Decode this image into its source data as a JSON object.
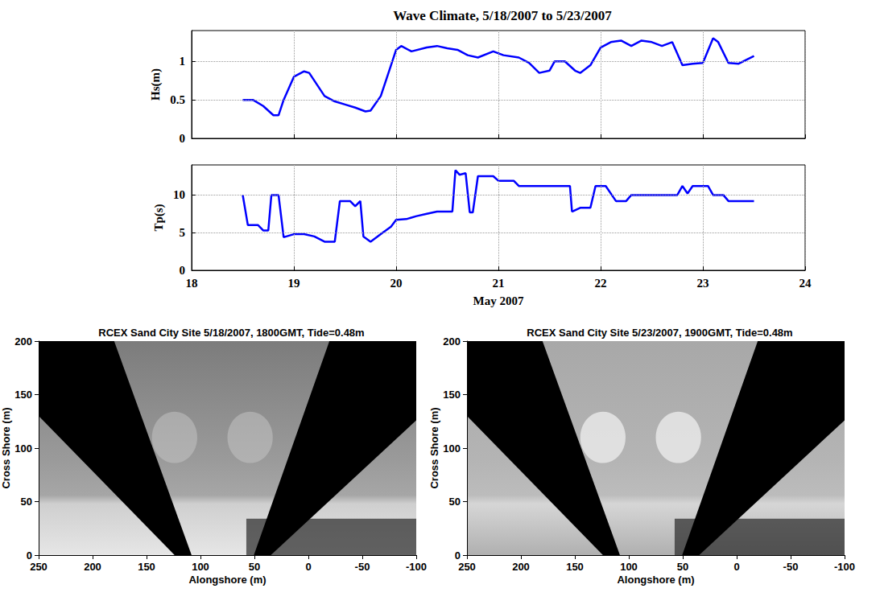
{
  "chart_data": [
    {
      "type": "line",
      "title": "Wave Climate, 5/18/2007 to 5/23/2007",
      "y_label": "Hs(m)",
      "x": [
        18.5,
        18.6,
        18.7,
        18.8,
        18.85,
        18.9,
        19.0,
        19.1,
        19.15,
        19.3,
        19.4,
        19.5,
        19.6,
        19.7,
        19.75,
        19.85,
        19.95,
        20.0,
        20.05,
        20.15,
        20.3,
        20.4,
        20.5,
        20.6,
        20.7,
        20.8,
        20.95,
        21.05,
        21.2,
        21.3,
        21.4,
        21.5,
        21.55,
        21.65,
        21.75,
        21.8,
        21.9,
        22.0,
        22.1,
        22.2,
        22.3,
        22.4,
        22.5,
        22.6,
        22.7,
        22.8,
        22.9,
        23.0,
        23.1,
        23.15,
        23.25,
        23.35,
        23.5
      ],
      "values": [
        0.5,
        0.5,
        0.42,
        0.3,
        0.3,
        0.5,
        0.8,
        0.87,
        0.85,
        0.55,
        0.48,
        0.44,
        0.4,
        0.35,
        0.36,
        0.55,
        0.95,
        1.15,
        1.2,
        1.13,
        1.18,
        1.2,
        1.17,
        1.15,
        1.08,
        1.05,
        1.13,
        1.08,
        1.05,
        0.98,
        0.85,
        0.88,
        1.0,
        1.0,
        0.88,
        0.85,
        0.95,
        1.18,
        1.25,
        1.27,
        1.2,
        1.27,
        1.25,
        1.2,
        1.25,
        0.95,
        0.97,
        0.98,
        1.3,
        1.25,
        0.98,
        0.97,
        1.07
      ],
      "color": "#0000ff",
      "xlim": [
        18,
        24
      ],
      "xticks": [
        18,
        19,
        20,
        21,
        22,
        23,
        24
      ],
      "ylim": [
        0,
        1.4
      ],
      "yticks": [
        0,
        0.5,
        1
      ],
      "grid": true,
      "tick_labels": "y"
    },
    {
      "type": "line",
      "x_label": "May 2007",
      "y_label": "Tp(s)",
      "x": [
        18.5,
        18.55,
        18.65,
        18.7,
        18.75,
        18.78,
        18.85,
        18.9,
        19.0,
        19.1,
        19.2,
        19.3,
        19.4,
        19.45,
        19.55,
        19.6,
        19.65,
        19.68,
        19.75,
        19.85,
        19.95,
        20.0,
        20.1,
        20.2,
        20.3,
        20.4,
        20.55,
        20.58,
        20.62,
        20.68,
        20.72,
        20.75,
        20.8,
        20.95,
        21.0,
        21.15,
        21.2,
        21.7,
        21.72,
        21.8,
        21.9,
        21.95,
        22.05,
        22.15,
        22.25,
        22.3,
        22.75,
        22.8,
        22.85,
        22.9,
        23.05,
        23.1,
        23.2,
        23.25,
        23.5
      ],
      "values": [
        10,
        6,
        6,
        5.3,
        5.3,
        10,
        10,
        4.4,
        4.8,
        4.8,
        4.5,
        3.8,
        3.8,
        9.2,
        9.2,
        8.5,
        9.2,
        4.5,
        3.8,
        4.8,
        5.8,
        6.7,
        6.8,
        7.2,
        7.5,
        7.8,
        7.8,
        13.3,
        12.7,
        12.9,
        7.7,
        7.7,
        12.5,
        12.5,
        11.9,
        11.9,
        11.2,
        11.2,
        7.8,
        8.3,
        8.3,
        11.2,
        11.2,
        9.2,
        9.2,
        10,
        10,
        11.2,
        10.2,
        11.2,
        11.2,
        10,
        10,
        9.2,
        9.2
      ],
      "color": "#0000ff",
      "xlim": [
        18,
        24
      ],
      "xticks": [
        18,
        19,
        20,
        21,
        22,
        23,
        24
      ],
      "ylim": [
        0,
        14
      ],
      "yticks": [
        0,
        5,
        10
      ],
      "grid": true
    },
    {
      "type": "image",
      "title": "RCEX Sand City Site 5/18/2007, 1800GMT, Tide=0.48m",
      "x_label": "Alongshore (m)",
      "y_label": "Cross Shore (m)",
      "xlim": [
        250,
        -100
      ],
      "xticks": [
        250,
        200,
        150,
        100,
        50,
        0,
        -50,
        -100
      ],
      "ylim": [
        0,
        200
      ],
      "yticks": [
        0,
        50,
        100,
        150,
        200
      ],
      "grid": false
    },
    {
      "type": "image",
      "title": "RCEX Sand City Site 5/23/2007, 1900GMT, Tide=0.48m",
      "x_label": "Alongshore (m)",
      "y_label": "Cross Shore (m)",
      "xlim": [
        250,
        -100
      ],
      "xticks": [
        250,
        200,
        150,
        100,
        50,
        0,
        -50,
        -100
      ],
      "ylim": [
        0,
        200
      ],
      "yticks": [
        0,
        50,
        100,
        150,
        200
      ],
      "grid": false
    }
  ]
}
